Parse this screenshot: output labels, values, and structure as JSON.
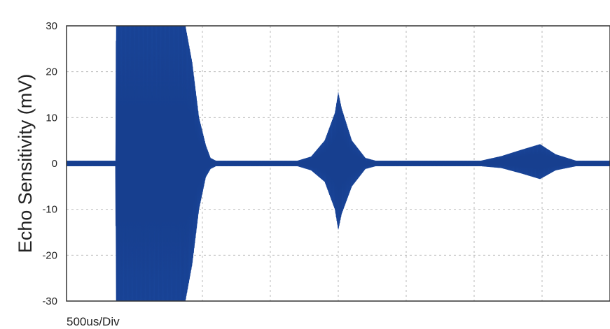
{
  "chart_data": {
    "type": "line",
    "ylabel": "Echo Sensitivity (mV)",
    "xlabel": "500us/Div",
    "ylim": [
      -30,
      30
    ],
    "y_ticks": [
      "30",
      "20",
      "10",
      "0",
      "-10",
      "-20",
      "-30"
    ],
    "y_tick_values": [
      30,
      20,
      10,
      0,
      -10,
      -20,
      -30
    ],
    "x_divisions": 8,
    "x_unit_per_div_us": 500,
    "grid": true,
    "grid_style": "dashed",
    "series": [
      {
        "color": "#1f4fa8",
        "envelope": [
          {
            "x_div": 0.0,
            "upper": 0.6,
            "lower": -0.6
          },
          {
            "x_div": 0.72,
            "upper": 0.6,
            "lower": -0.6
          },
          {
            "x_div": 0.73,
            "upper": 30,
            "lower": -30
          },
          {
            "x_div": 1.75,
            "upper": 30,
            "lower": -30
          },
          {
            "x_div": 1.85,
            "upper": 22,
            "lower": -22
          },
          {
            "x_div": 1.95,
            "upper": 10,
            "lower": -10
          },
          {
            "x_div": 2.05,
            "upper": 4,
            "lower": -3
          },
          {
            "x_div": 2.12,
            "upper": 1.2,
            "lower": -1.2
          },
          {
            "x_div": 2.2,
            "upper": 0.6,
            "lower": -0.6
          },
          {
            "x_div": 3.4,
            "upper": 0.6,
            "lower": -0.6
          },
          {
            "x_div": 3.6,
            "upper": 1.5,
            "lower": -1.5
          },
          {
            "x_div": 3.8,
            "upper": 5,
            "lower": -4
          },
          {
            "x_div": 3.95,
            "upper": 11,
            "lower": -10
          },
          {
            "x_div": 4.0,
            "upper": 15.5,
            "lower": -14.5
          },
          {
            "x_div": 4.05,
            "upper": 12,
            "lower": -11
          },
          {
            "x_div": 4.2,
            "upper": 5,
            "lower": -5
          },
          {
            "x_div": 4.4,
            "upper": 1.2,
            "lower": -1.2
          },
          {
            "x_div": 4.55,
            "upper": 0.6,
            "lower": -0.6
          },
          {
            "x_div": 6.1,
            "upper": 0.6,
            "lower": -0.6
          },
          {
            "x_div": 6.4,
            "upper": 1.6,
            "lower": -1.0
          },
          {
            "x_div": 6.7,
            "upper": 3.0,
            "lower": -2.2
          },
          {
            "x_div": 6.97,
            "upper": 4.2,
            "lower": -3.4
          },
          {
            "x_div": 7.2,
            "upper": 2.0,
            "lower": -1.5
          },
          {
            "x_div": 7.5,
            "upper": 0.6,
            "lower": -0.6
          },
          {
            "x_div": 8.0,
            "upper": 0.6,
            "lower": -0.6
          }
        ]
      }
    ]
  }
}
